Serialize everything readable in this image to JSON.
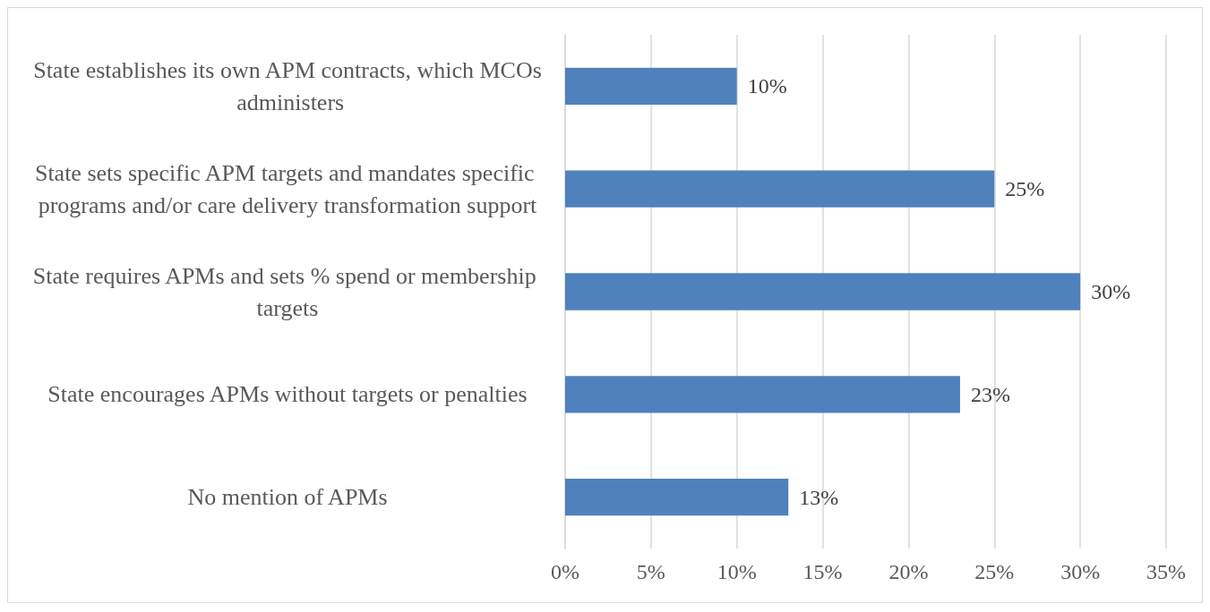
{
  "chart_data": {
    "type": "bar",
    "orientation": "horizontal",
    "categories": [
      "State establishes its own APM contracts, which MCOs administers",
      "State sets specific APM targets and mandates specific programs and/or care delivery transformation support",
      "State requires APMs and sets % spend or membership targets",
      "State encourages APMs without targets or penalties",
      "No mention of APMs"
    ],
    "values": [
      10,
      25,
      30,
      23,
      13
    ],
    "value_labels": [
      "10%",
      "25%",
      "30%",
      "23%",
      "13%"
    ],
    "color": "#4f81bd",
    "xlim": [
      0,
      35
    ],
    "xticks": [
      {
        "value": 0,
        "label": "0%"
      },
      {
        "value": 5,
        "label": "5%"
      },
      {
        "value": 10,
        "label": "10%"
      },
      {
        "value": 15,
        "label": "15%"
      },
      {
        "value": 20,
        "label": "20%"
      },
      {
        "value": 25,
        "label": "25%"
      },
      {
        "value": 30,
        "label": "30%"
      },
      {
        "value": 35,
        "label": "35%"
      }
    ],
    "grid": "x"
  }
}
